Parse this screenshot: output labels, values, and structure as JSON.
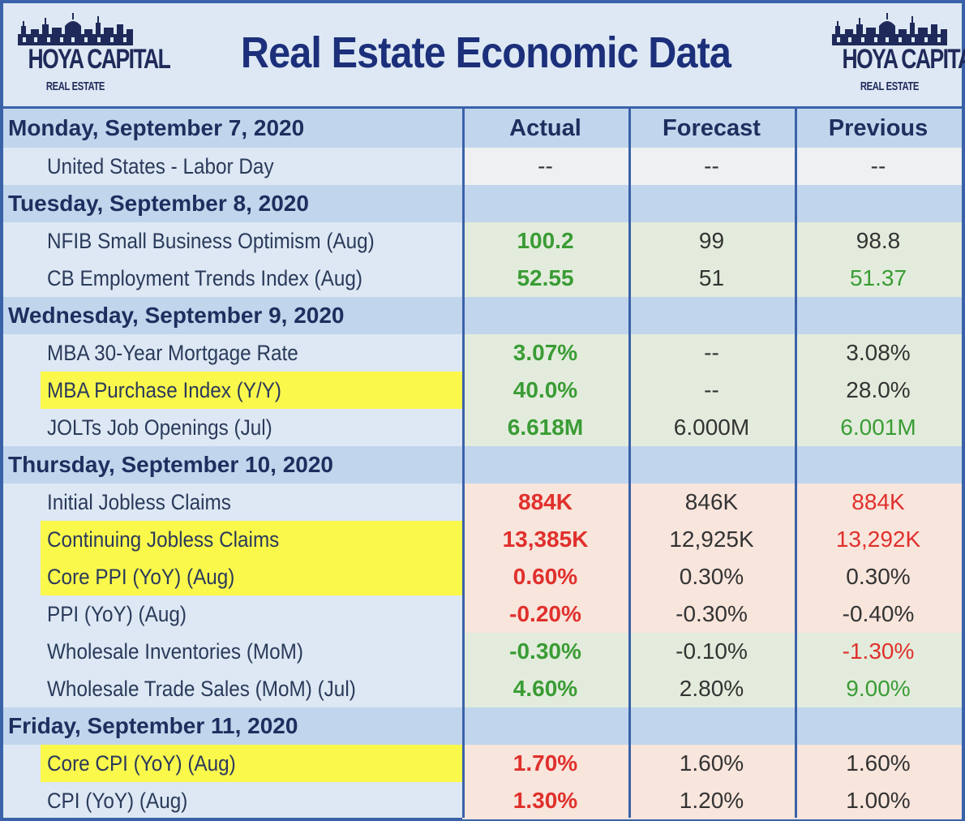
{
  "header": {
    "title": "Real Estate Economic Data",
    "logo_title": "HOYA CAPITAL",
    "logo_sub": "REAL ESTATE"
  },
  "columns": {
    "actual": "Actual",
    "forecast": "Forecast",
    "previous": "Previous"
  },
  "colors": {
    "border": "#3a62a9",
    "green": "#3a9c35",
    "red": "#e0302c",
    "highlight": "#fbf84c"
  },
  "days": [
    {
      "date": "Monday, September 7, 2020",
      "rows": [
        {
          "name": "United States - Labor Day",
          "actual": "--",
          "forecast": "--",
          "previous": "--",
          "shade": "gray",
          "highlight": false,
          "actual_color": "",
          "previous_color": ""
        }
      ]
    },
    {
      "date": "Tuesday, September 8, 2020",
      "rows": [
        {
          "name": "NFIB Small Business Optimism (Aug)",
          "actual": "100.2",
          "forecast": "99",
          "previous": "98.8",
          "shade": "green",
          "highlight": false,
          "actual_color": "green",
          "previous_color": ""
        },
        {
          "name": "CB Employment Trends Index (Aug)",
          "actual": "52.55",
          "forecast": "51",
          "previous": "51.37",
          "shade": "green",
          "highlight": false,
          "actual_color": "green",
          "previous_color": "green"
        }
      ]
    },
    {
      "date": "Wednesday, September 9, 2020",
      "rows": [
        {
          "name": "MBA 30-Year Mortgage Rate",
          "actual": "3.07%",
          "forecast": "--",
          "previous": "3.08%",
          "shade": "green",
          "highlight": false,
          "actual_color": "green",
          "previous_color": ""
        },
        {
          "name": "MBA Purchase Index (Y/Y)",
          "actual": "40.0%",
          "forecast": "--",
          "previous": "28.0%",
          "shade": "green",
          "highlight": true,
          "actual_color": "green",
          "previous_color": ""
        },
        {
          "name": "JOLTs Job Openings (Jul)",
          "actual": "6.618M",
          "forecast": "6.000M",
          "previous": "6.001M",
          "shade": "green",
          "highlight": false,
          "actual_color": "green",
          "previous_color": "green"
        }
      ]
    },
    {
      "date": "Thursday, September 10, 2020",
      "rows": [
        {
          "name": "Initial Jobless Claims",
          "actual": "884K",
          "forecast": "846K",
          "previous": "884K",
          "shade": "red",
          "highlight": false,
          "actual_color": "red",
          "previous_color": "red"
        },
        {
          "name": "Continuing Jobless Claims",
          "actual": "13,385K",
          "forecast": "12,925K",
          "previous": "13,292K",
          "shade": "red",
          "highlight": true,
          "actual_color": "red",
          "previous_color": "red"
        },
        {
          "name": "Core PPI (YoY) (Aug)",
          "actual": "0.60%",
          "forecast": "0.30%",
          "previous": "0.30%",
          "shade": "red",
          "highlight": true,
          "actual_color": "red",
          "previous_color": ""
        },
        {
          "name": "PPI (YoY) (Aug)",
          "actual": "-0.20%",
          "forecast": "-0.30%",
          "previous": "-0.40%",
          "shade": "red",
          "highlight": false,
          "actual_color": "red",
          "previous_color": ""
        },
        {
          "name": "Wholesale Inventories (MoM)",
          "actual": "-0.30%",
          "forecast": "-0.10%",
          "previous": "-1.30%",
          "shade": "green",
          "highlight": false,
          "actual_color": "green",
          "previous_color": "red"
        },
        {
          "name": "Wholesale Trade Sales (MoM) (Jul)",
          "actual": "4.60%",
          "forecast": "2.80%",
          "previous": "9.00%",
          "shade": "green",
          "highlight": false,
          "actual_color": "green",
          "previous_color": "green"
        }
      ]
    },
    {
      "date": "Friday, September 11, 2020",
      "rows": [
        {
          "name": "Core CPI (YoY) (Aug)",
          "actual": "1.70%",
          "forecast": "1.60%",
          "previous": "1.60%",
          "shade": "red",
          "highlight": true,
          "actual_color": "red",
          "previous_color": ""
        },
        {
          "name": "CPI (YoY) (Aug)",
          "actual": "1.30%",
          "forecast": "1.20%",
          "previous": "1.00%",
          "shade": "red",
          "highlight": false,
          "actual_color": "red",
          "previous_color": ""
        }
      ]
    }
  ]
}
